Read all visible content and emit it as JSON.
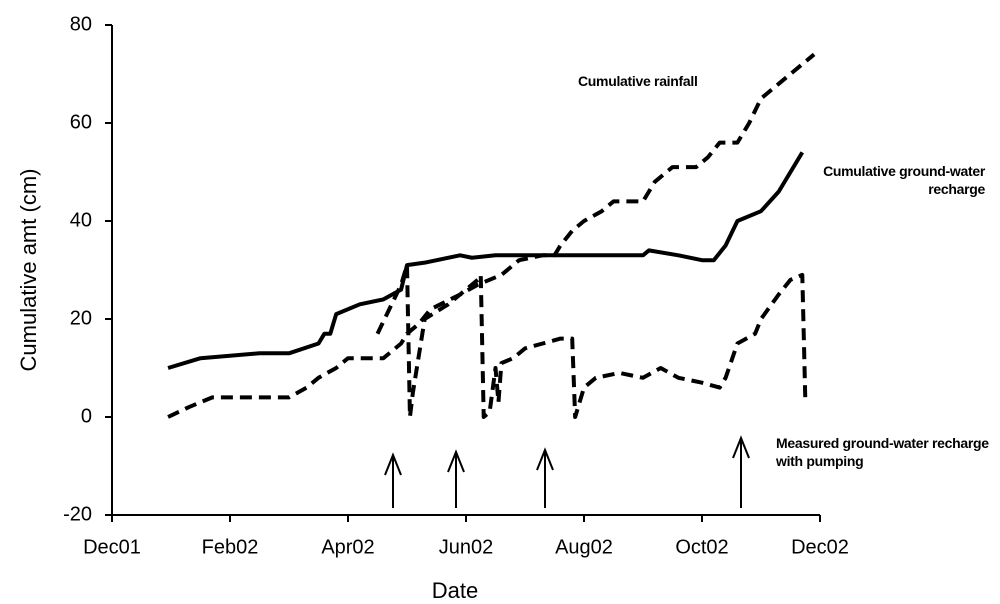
{
  "chart_data": {
    "type": "line",
    "y_label": "Cumulative amt (cm)",
    "x_label": "Date",
    "xlim": [
      0,
      12
    ],
    "xticks": [
      {
        "value": 0,
        "label": "Dec01"
      },
      {
        "value": 2,
        "label": "Feb02"
      },
      {
        "value": 4,
        "label": "Apr02"
      },
      {
        "value": 6,
        "label": "Jun02"
      },
      {
        "value": 8,
        "label": "Aug02"
      },
      {
        "value": 10,
        "label": "Oct02"
      },
      {
        "value": 12,
        "label": "Dec02"
      }
    ],
    "ylim": [
      -20,
      80
    ],
    "yticks": [
      -20,
      0,
      20,
      40,
      60,
      80
    ],
    "series": [
      {
        "name": "Cumulative rainfall",
        "color": "#000000",
        "style": "dashed",
        "x": [
          0.95,
          1.3,
          1.7,
          3.0,
          3.3,
          3.5,
          3.8,
          4.0,
          4.6,
          4.9,
          5.0,
          5.2,
          5.4,
          5.9,
          6.2,
          6.6,
          6.9,
          7.3,
          7.5,
          7.6,
          7.8,
          8.0,
          8.3,
          8.5,
          9.0,
          9.2,
          9.5,
          9.9,
          10.1,
          10.3,
          10.6,
          10.8,
          11.0,
          11.3,
          11.5,
          11.8,
          11.9
        ],
        "values": [
          0,
          2,
          4,
          4,
          6,
          8,
          10,
          12,
          12,
          15,
          17,
          19,
          22,
          25,
          27,
          29,
          32,
          33,
          33,
          35,
          38,
          40,
          42,
          44,
          44,
          48,
          51,
          51,
          53,
          56,
          56,
          60,
          65,
          68,
          70,
          73,
          74
        ]
      },
      {
        "name": "Cumulative ground-water recharge",
        "color": "#000000",
        "style": "solid",
        "x": [
          0.95,
          1.5,
          2.5,
          3.0,
          3.5,
          3.6,
          3.7,
          3.8,
          4.2,
          4.6,
          4.9,
          5.0,
          5.3,
          5.9,
          6.1,
          6.5,
          9.0,
          9.1,
          9.6,
          10.0,
          10.2,
          10.4,
          10.6,
          11.0,
          11.3,
          11.5,
          11.7
        ],
        "values": [
          10,
          12,
          13,
          13,
          15,
          17,
          17,
          21,
          23,
          24,
          26,
          31,
          31.5,
          33,
          32.5,
          33,
          33,
          34,
          33,
          32,
          32,
          35,
          40,
          42,
          46,
          50,
          54
        ]
      },
      {
        "name": "Measured ground-water recharge with pumping",
        "color": "#000000",
        "style": "dashed",
        "x": [
          4.5,
          4.9,
          5.0,
          5.05,
          5.1,
          5.3,
          5.7,
          6.0,
          6.2,
          6.25,
          6.3,
          6.4,
          6.5,
          6.55,
          6.6,
          6.8,
          7.0,
          7.3,
          7.6,
          7.8,
          7.85,
          8.0,
          8.2,
          8.6,
          9.0,
          9.3,
          9.6,
          10.0,
          10.3,
          10.4,
          10.6,
          10.9,
          11.0,
          11.3,
          11.5,
          11.7,
          11.75
        ],
        "values": [
          17,
          27,
          31,
          0,
          5,
          20,
          23,
          26,
          28,
          29,
          0,
          1,
          10,
          3,
          11,
          12,
          14,
          15,
          16,
          16,
          0,
          6,
          8,
          9,
          8,
          10,
          8,
          7,
          6,
          8,
          15,
          17,
          20,
          25,
          28,
          29,
          4
        ]
      }
    ]
  }
}
